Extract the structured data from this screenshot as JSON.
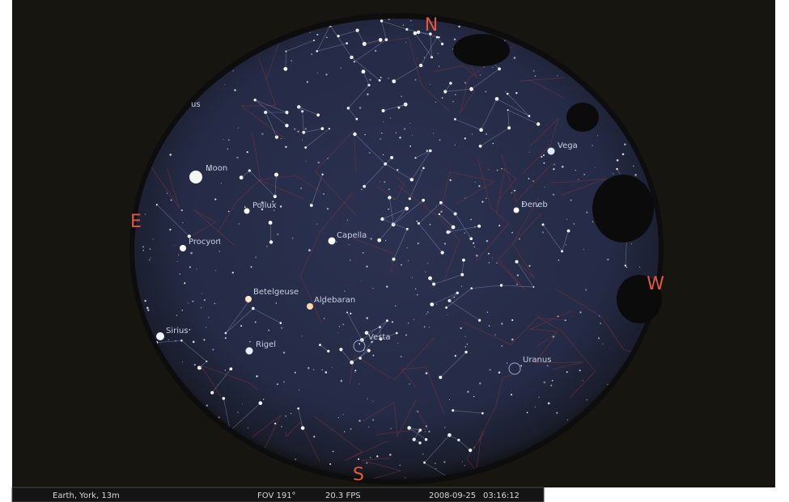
{
  "compass": {
    "north": "N",
    "east": "E",
    "west": "W",
    "south": "S"
  },
  "sky_labels": [
    "us",
    "Moon",
    "Pollux",
    "Capella",
    "Procyon",
    "Betelgeuse",
    "Aldebaran",
    "Sirius",
    "Rigel",
    "Vesta",
    "Uranus",
    "Deneb",
    "Vega"
  ],
  "status_bar": {
    "location": "Earth, York, 13m",
    "fov": "FOV 191°",
    "fps": "20.3 FPS",
    "date": "2008-09-25",
    "time": "03:16:12"
  }
}
